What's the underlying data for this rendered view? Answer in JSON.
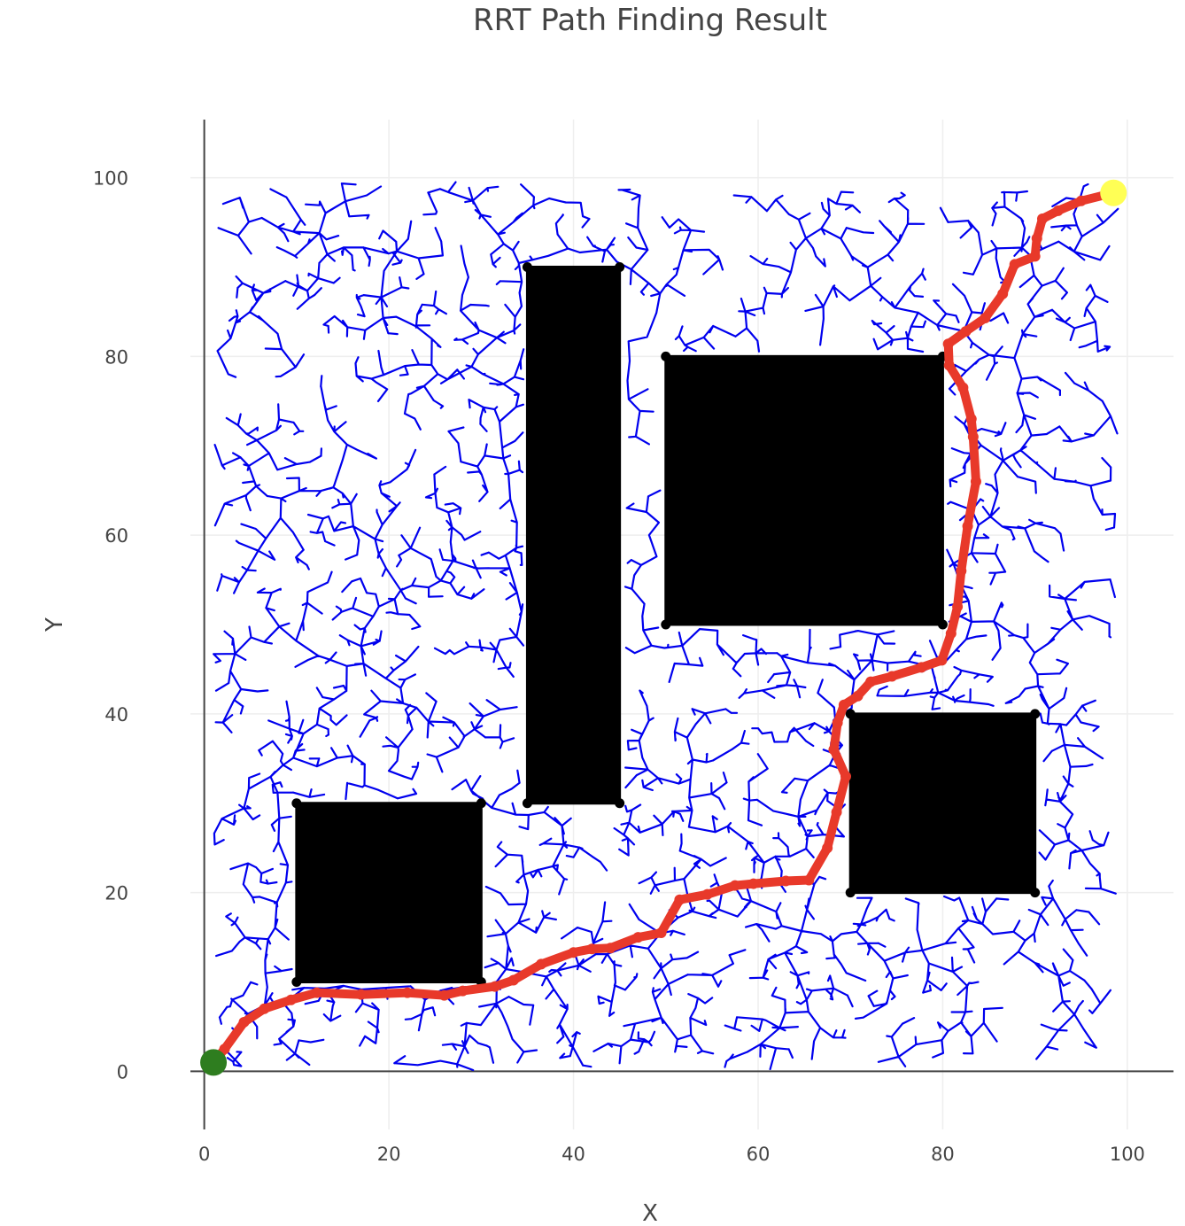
{
  "chart_data": {
    "type": "scatter",
    "title": "RRT Path Finding Result",
    "xlabel": "X",
    "ylabel": "Y",
    "xlim": [
      -1.5,
      105
    ],
    "ylim": [
      -6.5,
      106.5
    ],
    "xticks": [
      0,
      20,
      40,
      60,
      80,
      100
    ],
    "yticks": [
      0,
      20,
      40,
      60,
      80,
      100
    ],
    "grid": true,
    "legend": "none",
    "colors": {
      "tree": "#0000ee",
      "path": "#e8392a",
      "obstacle": "#000000",
      "start": "#2e7d1f",
      "goal": "#ffff55",
      "grid": "#eeeeee",
      "axis": "#444444"
    },
    "obstacles": [
      {
        "x0": 10,
        "y0": 10,
        "x1": 30,
        "y1": 30
      },
      {
        "x0": 35,
        "y0": 30,
        "x1": 45,
        "y1": 90
      },
      {
        "x0": 50,
        "y0": 50,
        "x1": 80,
        "y1": 80
      },
      {
        "x0": 70,
        "y0": 20,
        "x1": 90,
        "y1": 40
      }
    ],
    "start": {
      "x": 1,
      "y": 1
    },
    "goal": {
      "x": 98.5,
      "y": 98.3
    },
    "path": {
      "x": [
        1,
        2.2,
        4.3,
        6.5,
        9.4,
        12.2,
        17,
        22,
        26,
        28,
        31.5,
        33.5,
        36.5,
        40,
        42,
        44,
        47,
        49.5,
        51.5,
        54.5,
        57.5,
        59.5,
        63,
        65.5,
        67.5,
        68.5,
        69.5,
        68.2,
        68.6,
        69.3,
        70.8,
        72.2,
        74.5,
        77.7,
        79.9,
        80.9,
        81.6,
        82,
        82.7,
        83.6,
        83.3,
        83.1,
        82.2,
        80.7,
        80.6,
        82.5,
        84.6,
        86.5,
        87.8,
        90,
        90.2,
        90.8,
        92.5,
        95,
        98.5
      ],
      "y": [
        1,
        2.5,
        5.5,
        7,
        8,
        8.8,
        8.6,
        8.8,
        8.5,
        9,
        9.5,
        10.2,
        12,
        13.3,
        13.7,
        13.8,
        15,
        15.5,
        19.2,
        19.8,
        20.8,
        21,
        21.3,
        21.4,
        25,
        29,
        33,
        36,
        39,
        41,
        42,
        43.6,
        44.2,
        45.2,
        46,
        49,
        52,
        56,
        61,
        66,
        71,
        73,
        76.5,
        79,
        81.4,
        82.8,
        84.3,
        87,
        90.3,
        91.2,
        93.2,
        95.4,
        96.3,
        97.4,
        98.3
      ]
    },
    "tree": {
      "node_count": 2400,
      "seed": 20240611,
      "step": 0.6
    }
  }
}
